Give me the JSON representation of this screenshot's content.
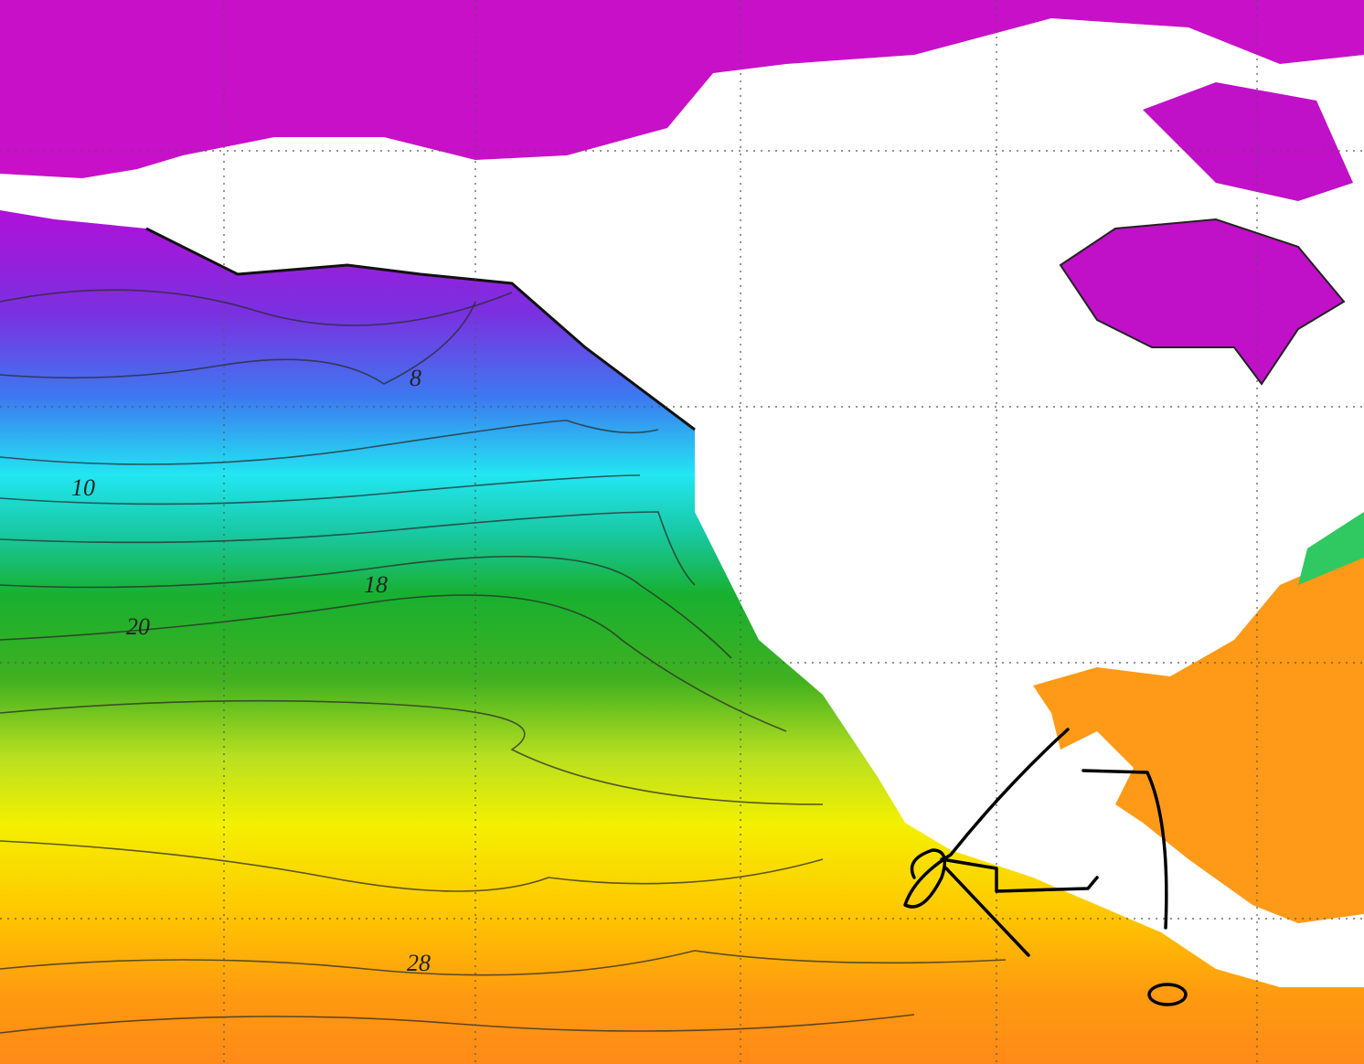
{
  "contour_labels": {
    "l8": "8",
    "l10": "10",
    "l18": "18",
    "l20": "20",
    "l28": "28"
  }
}
